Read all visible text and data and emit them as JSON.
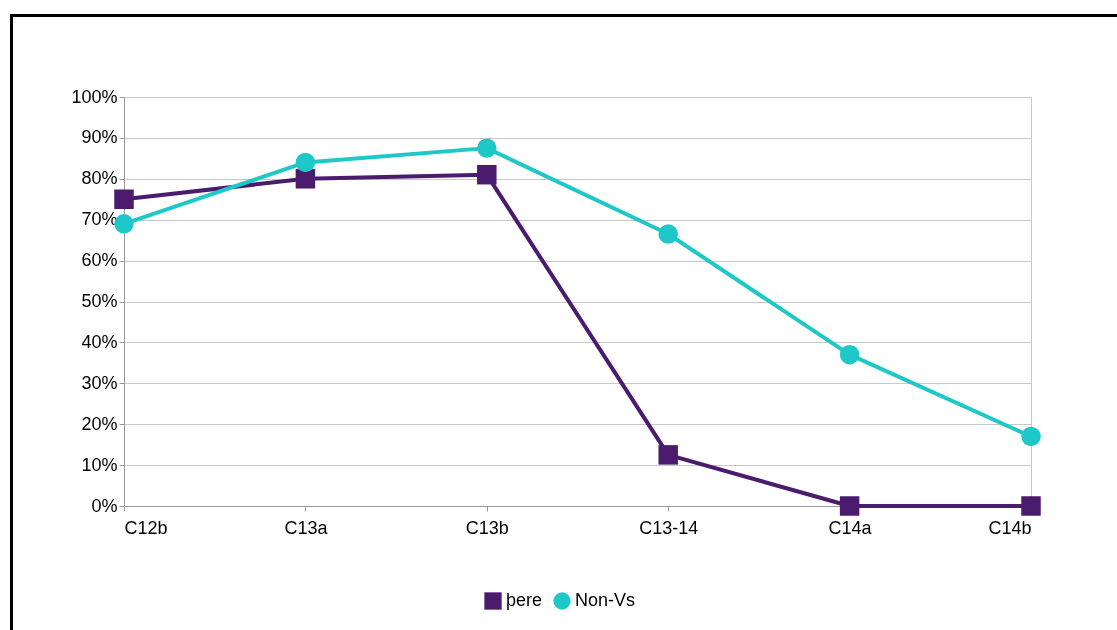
{
  "chart_data": {
    "type": "line",
    "categories": [
      "C12b",
      "C13a",
      "C13b",
      "C13-14",
      "C14a",
      "C14b"
    ],
    "series": [
      {
        "name": "þere",
        "color": "#4b1c6e",
        "marker": "square",
        "values": [
          75,
          80,
          81,
          12.5,
          0,
          0
        ]
      },
      {
        "name": "Non-Vs",
        "color": "#1fc8c8",
        "marker": "circle",
        "values": [
          69,
          84,
          87.5,
          66.5,
          37,
          17
        ]
      }
    ],
    "ylim": [
      0,
      100
    ],
    "yticks": [
      {
        "value": 0,
        "label": "0%"
      },
      {
        "value": 10,
        "label": "10%"
      },
      {
        "value": 20,
        "label": "20%"
      },
      {
        "value": 30,
        "label": "30%"
      },
      {
        "value": 40,
        "label": "40%"
      },
      {
        "value": 50,
        "label": "50%"
      },
      {
        "value": 60,
        "label": "60%"
      },
      {
        "value": 70,
        "label": "70%"
      },
      {
        "value": 80,
        "label": "80%"
      },
      {
        "value": 90,
        "label": "90%"
      },
      {
        "value": 100,
        "label": "100%"
      }
    ],
    "grid": "y",
    "legend": "bottom",
    "line_style": "solid"
  }
}
